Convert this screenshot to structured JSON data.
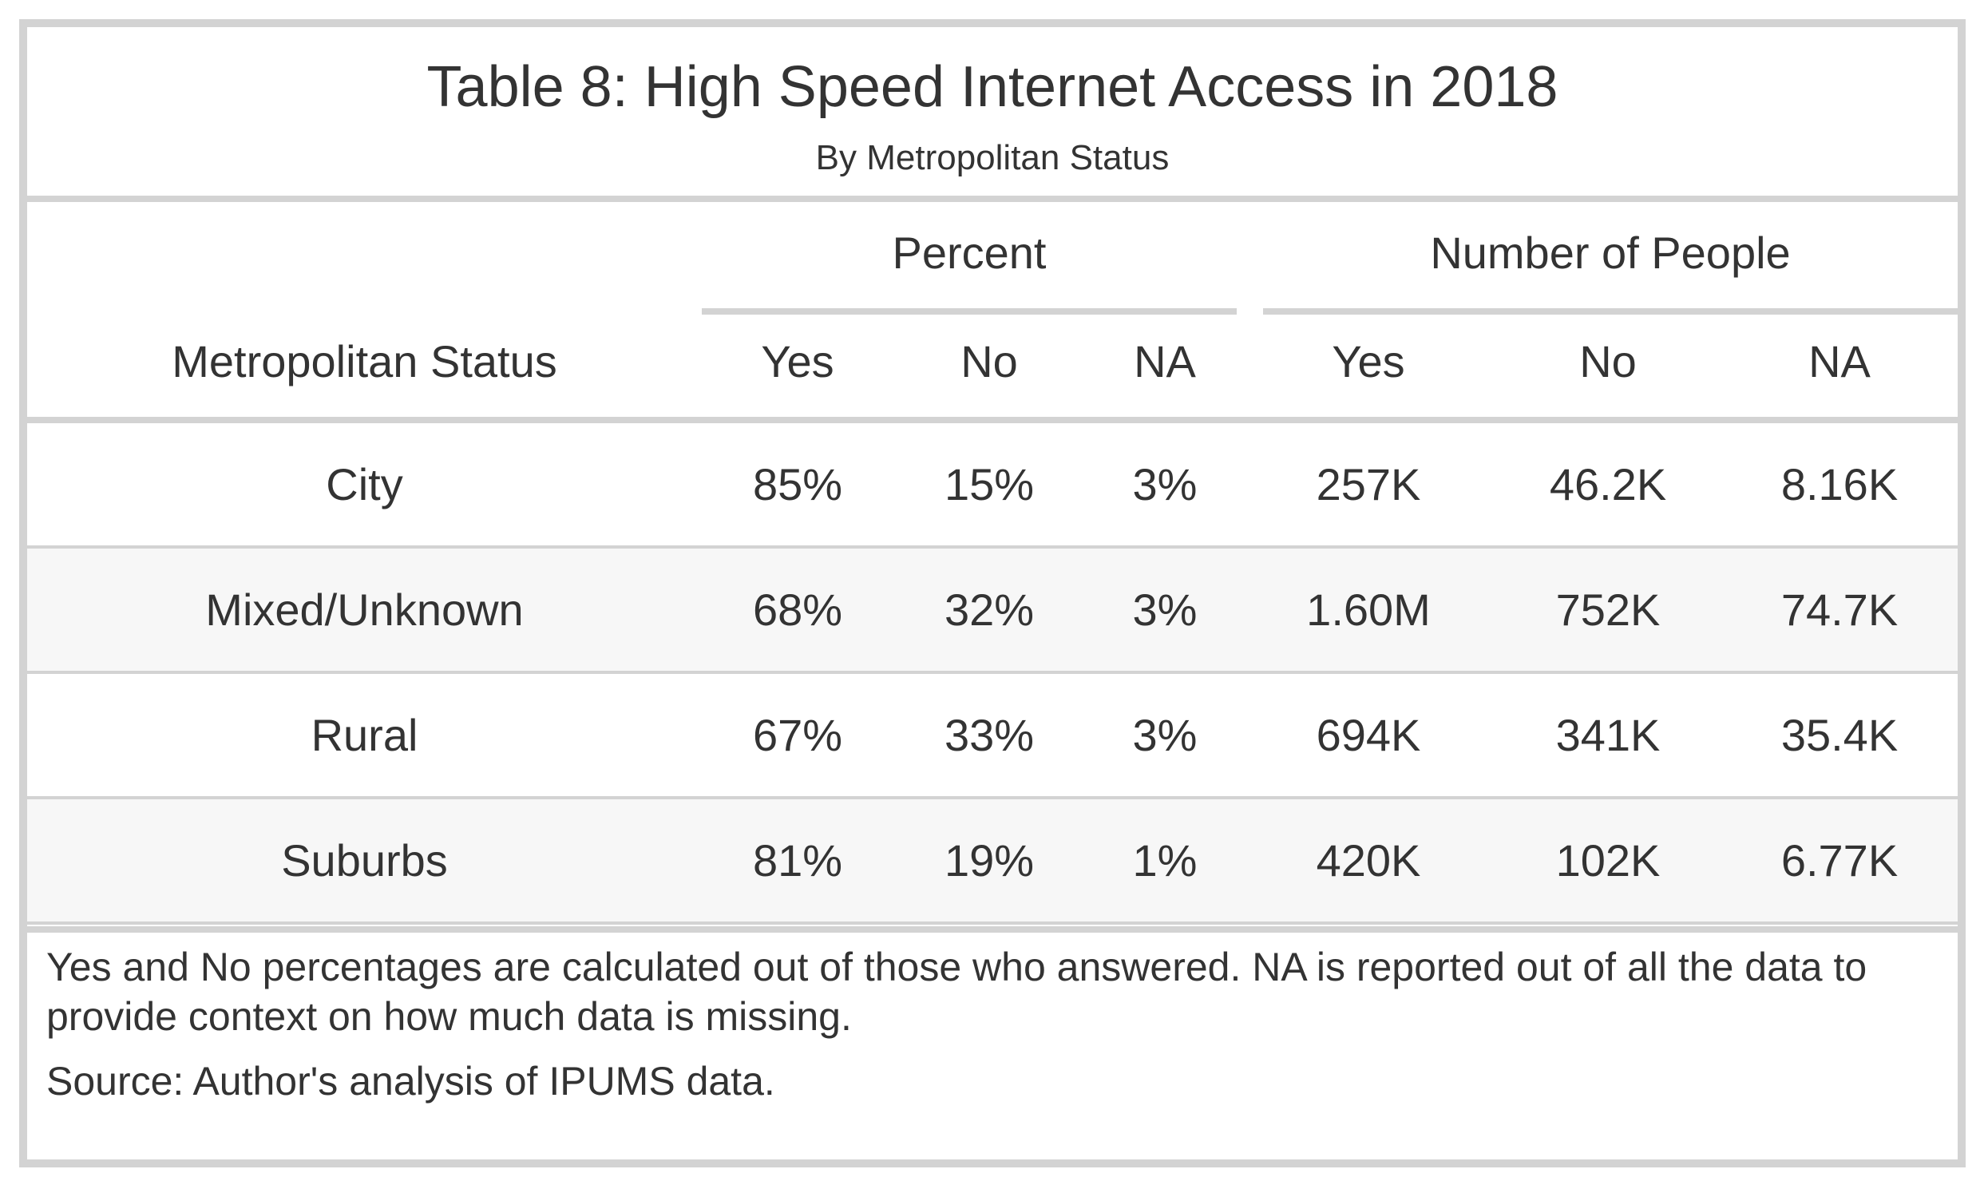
{
  "table": {
    "title": "Table 8: High Speed Internet Access in 2018",
    "subtitle": "By Metropolitan Status",
    "spanners": [
      "Percent",
      "Number of People"
    ],
    "columns": [
      "Metropolitan Status",
      "Yes",
      "No",
      "NA",
      "Yes",
      "No",
      "NA"
    ],
    "rows": [
      [
        "City",
        "85%",
        "15%",
        "3%",
        "257K",
        "46.2K",
        "8.16K"
      ],
      [
        "Mixed/Unknown",
        "68%",
        "32%",
        "3%",
        "1.60M",
        "752K",
        "74.7K"
      ],
      [
        "Rural",
        "67%",
        "33%",
        "3%",
        "694K",
        "341K",
        "35.4K"
      ],
      [
        "Suburbs",
        "81%",
        "19%",
        "1%",
        "420K",
        "102K",
        "6.77K"
      ]
    ],
    "footnote": "Yes and No percentages are calculated out of those who answered. NA is reported out of all the data to provide context on how much data is missing.",
    "source": "Source: Author's analysis of IPUMS data."
  },
  "colors": {
    "border": "#d3d3d3",
    "text": "#333333",
    "alt_row": "#f7f7f7"
  }
}
